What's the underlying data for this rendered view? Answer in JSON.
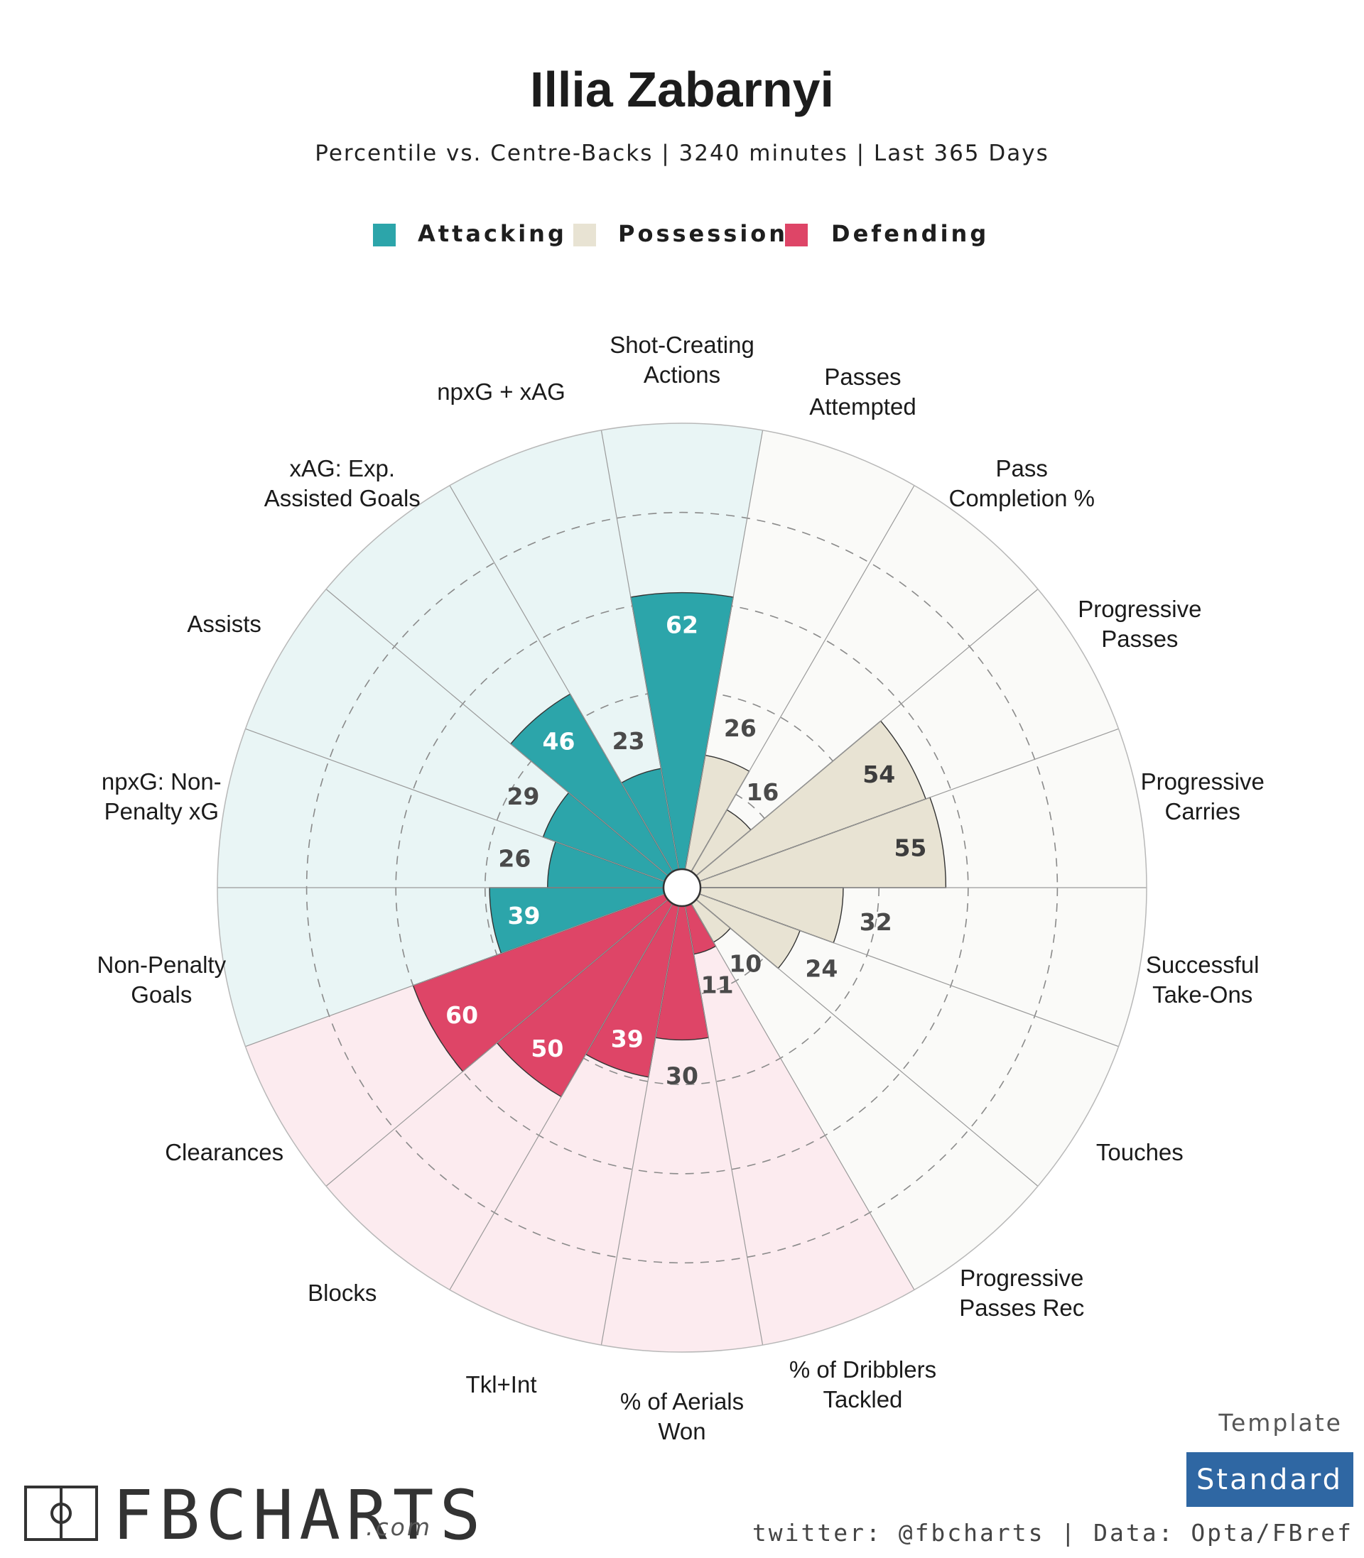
{
  "header": {
    "title": "Illia Zabarnyi",
    "subtitle": "Percentile vs. Centre-Backs | 3240 minutes | Last 365 Days"
  },
  "legend": [
    {
      "label": "Attacking",
      "color": "#2ca5aa"
    },
    {
      "label": "Possession",
      "color": "#e8e3d3"
    },
    {
      "label": "Defending",
      "color": "#de4567"
    }
  ],
  "chart_data": {
    "type": "polar-bar",
    "range": [
      0,
      100
    ],
    "grid": true,
    "categories": [
      {
        "label": "Shot-Creating Actions",
        "group": "Attacking",
        "value": 62
      },
      {
        "label": "Passes Attempted",
        "group": "Possession",
        "value": 26
      },
      {
        "label": "Pass Completion %",
        "group": "Possession",
        "value": 16
      },
      {
        "label": "Progressive Passes",
        "group": "Possession",
        "value": 54
      },
      {
        "label": "Progressive Carries",
        "group": "Possession",
        "value": 55
      },
      {
        "label": "Successful Take-Ons",
        "group": "Possession",
        "value": 32
      },
      {
        "label": "Touches",
        "group": "Possession",
        "value": 24
      },
      {
        "label": "Progressive Passes Rec",
        "group": "Possession",
        "value": 10
      },
      {
        "label": "% of Dribblers Tackled",
        "group": "Defending",
        "value": 11
      },
      {
        "label": "% of Aerials Won",
        "group": "Defending",
        "value": 30
      },
      {
        "label": "Tkl+Int",
        "group": "Defending",
        "value": 39
      },
      {
        "label": "Blocks",
        "group": "Defending",
        "value": 50
      },
      {
        "label": "Clearances",
        "group": "Defending",
        "value": 60
      },
      {
        "label": "Non-Penalty Goals",
        "group": "Attacking",
        "value": 39
      },
      {
        "label": "npxG: Non-Penalty xG",
        "group": "Attacking",
        "value": 26
      },
      {
        "label": "Assists",
        "group": "Attacking",
        "value": 29
      },
      {
        "label": "xAG: Exp. Assisted Goals",
        "group": "Attacking",
        "value": 46
      },
      {
        "label": "npxG + xAG",
        "group": "Attacking",
        "value": 23
      }
    ],
    "category_label_lines": [
      [
        "Shot-Creating",
        "Actions"
      ],
      [
        "Passes",
        "Attempted"
      ],
      [
        "Pass",
        "Completion %"
      ],
      [
        "Progressive",
        "Passes"
      ],
      [
        "Progressive",
        "Carries"
      ],
      [
        "Successful",
        "Take-Ons"
      ],
      [
        "Touches"
      ],
      [
        "Progressive",
        "Passes Rec"
      ],
      [
        "% of Dribblers",
        "Tackled"
      ],
      [
        "% of Aerials",
        "Won"
      ],
      [
        "Tkl+Int"
      ],
      [
        "Blocks"
      ],
      [
        "Clearances"
      ],
      [
        "Non-Penalty",
        "Goals"
      ],
      [
        "npxG: Non-",
        "Penalty xG"
      ],
      [
        "Assists"
      ],
      [
        "xAG: Exp.",
        "Assisted Goals"
      ],
      [
        "npxG + xAG"
      ]
    ],
    "colors": {
      "Attacking": {
        "bar": "#2ca5aa",
        "bg": "#e9f5f5"
      },
      "Possession": {
        "bar": "#e8e3d3",
        "bg": "#fafaf8"
      },
      "Defending": {
        "bar": "#de4567",
        "bg": "#fcebef"
      }
    }
  },
  "footer": {
    "template_word": "Template",
    "template_badge": "Standard",
    "template_badge_color": "#2f67a3",
    "brand": "FBCHARTS",
    "brand_suffix": ".com",
    "credit": "twitter: @fbcharts | Data: Opta/FBref"
  }
}
